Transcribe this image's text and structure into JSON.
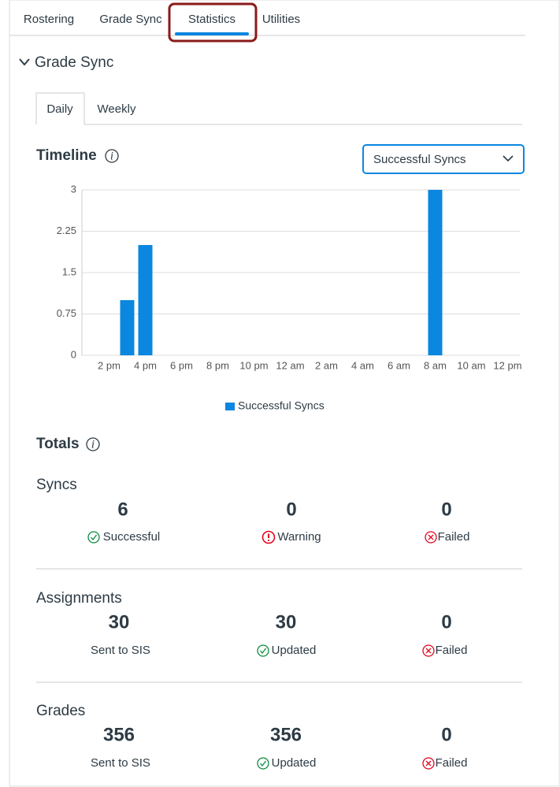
{
  "tabs": [
    "Rostering",
    "Grade Sync",
    "Statistics",
    "Utilities"
  ],
  "section_title": "Grade Sync",
  "subtabs": [
    "Daily",
    "Weekly"
  ],
  "timeline_title": "Timeline",
  "select_value": "Successful Syncs",
  "chart_data": {
    "type": "bar",
    "categories": [
      null,
      "2 pm",
      null,
      "4 pm",
      null,
      "6 pm",
      null,
      "8 pm",
      null,
      "10 pm",
      null,
      "12 am",
      null,
      "2 am",
      null,
      "4 am",
      null,
      "6 am",
      null,
      "8 am",
      null,
      "10 am",
      null,
      "12 pm"
    ],
    "series": [
      {
        "name": "Successful Syncs",
        "color": "#0b87e0",
        "values": [
          0,
          0,
          1,
          2,
          0,
          0,
          0,
          0,
          0,
          0,
          0,
          0,
          0,
          0,
          0,
          0,
          0,
          0,
          0,
          3,
          0,
          0,
          0,
          0
        ]
      }
    ],
    "ylim": [
      0,
      3
    ],
    "yticks": [
      0,
      0.75,
      1.5,
      2.25,
      3
    ],
    "grid": true
  },
  "totals_title": "Totals",
  "sections": [
    {
      "title": "Syncs",
      "items": [
        {
          "value": 6,
          "label": "Successful"
        },
        {
          "value": 0,
          "label": "Warning"
        },
        {
          "value": 0,
          "label": "Failed"
        }
      ]
    },
    {
      "title": "Assignments",
      "items": [
        {
          "value": 30,
          "label": "Sent to SIS"
        },
        {
          "value": 30,
          "label": "Updated"
        },
        {
          "value": 0,
          "label": "Failed"
        }
      ]
    },
    {
      "title": "Grades",
      "items": [
        {
          "value": 356,
          "label": "Sent to SIS"
        },
        {
          "value": 356,
          "label": "Updated"
        },
        {
          "value": 0,
          "label": "Failed"
        }
      ]
    }
  ]
}
